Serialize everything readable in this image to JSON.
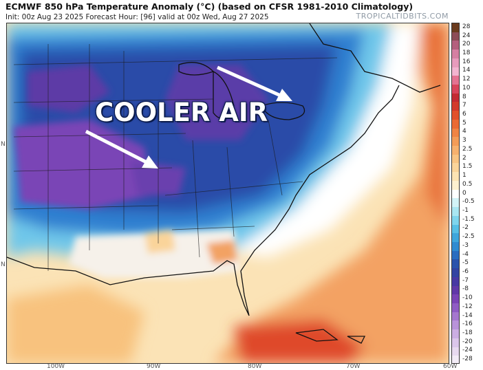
{
  "header": {
    "title": "ECMWF 850 hPa Temperature Anomaly (°C) (based on CFSR 1981-2010 Climatology)",
    "subtitle": "Init: 00z Aug 23 2025   Forecast Hour: [96]   valid at 00z Wed, Aug 27 2025",
    "brand": "TROPICALTIDBITS.COM"
  },
  "annotation": {
    "text": "COOLER AIR",
    "color": "#ffffff"
  },
  "axes": {
    "x_ticks": [
      "100W",
      "90W",
      "80W",
      "70W",
      "60W"
    ],
    "y_ticks": [
      "N",
      "N"
    ]
  },
  "colorbar": {
    "levels": [
      {
        "label": "28",
        "color": "#6b3b1e"
      },
      {
        "label": "24",
        "color": "#8d4c57"
      },
      {
        "label": "20",
        "color": "#b45f7d"
      },
      {
        "label": "18",
        "color": "#d57fa2"
      },
      {
        "label": "16",
        "color": "#e79bbc"
      },
      {
        "label": "14",
        "color": "#f2b4cf"
      },
      {
        "label": "12",
        "color": "#e47291"
      },
      {
        "label": "10",
        "color": "#d8445a"
      },
      {
        "label": "8",
        "color": "#c32a32"
      },
      {
        "label": "7",
        "color": "#d33a2c"
      },
      {
        "label": "6",
        "color": "#e2512c"
      },
      {
        "label": "5",
        "color": "#ea6a34"
      },
      {
        "label": "4",
        "color": "#f08444"
      },
      {
        "label": "3",
        "color": "#f39c58"
      },
      {
        "label": "2.5",
        "color": "#f6b16e"
      },
      {
        "label": "2",
        "color": "#f8c483"
      },
      {
        "label": "1.5",
        "color": "#fad49a"
      },
      {
        "label": "1",
        "color": "#fce3b3"
      },
      {
        "label": "0.5",
        "color": "#fdf0cf"
      },
      {
        "label": "0",
        "color": "#ffffff"
      },
      {
        "label": "-0.5",
        "color": "#d2f3f7"
      },
      {
        "label": "-1",
        "color": "#a9e6f2"
      },
      {
        "label": "-1.5",
        "color": "#7fd5ed"
      },
      {
        "label": "-2",
        "color": "#57bfe5"
      },
      {
        "label": "-2.5",
        "color": "#3ea6dc"
      },
      {
        "label": "-3",
        "color": "#2f8bd1"
      },
      {
        "label": "-4",
        "color": "#2a6dc0"
      },
      {
        "label": "-5",
        "color": "#2a53ac"
      },
      {
        "label": "-6",
        "color": "#3243a2"
      },
      {
        "label": "-7",
        "color": "#4838a3"
      },
      {
        "label": "-8",
        "color": "#6138a8"
      },
      {
        "label": "-10",
        "color": "#7a44b6"
      },
      {
        "label": "-12",
        "color": "#8f5cc4"
      },
      {
        "label": "-14",
        "color": "#a577cf"
      },
      {
        "label": "-16",
        "color": "#b993da"
      },
      {
        "label": "-18",
        "color": "#cbaee2"
      },
      {
        "label": "-20",
        "color": "#dbc6ea"
      },
      {
        "label": "-24",
        "color": "#e8daf0"
      },
      {
        "label": "-28",
        "color": "#f3ecf7"
      }
    ]
  }
}
